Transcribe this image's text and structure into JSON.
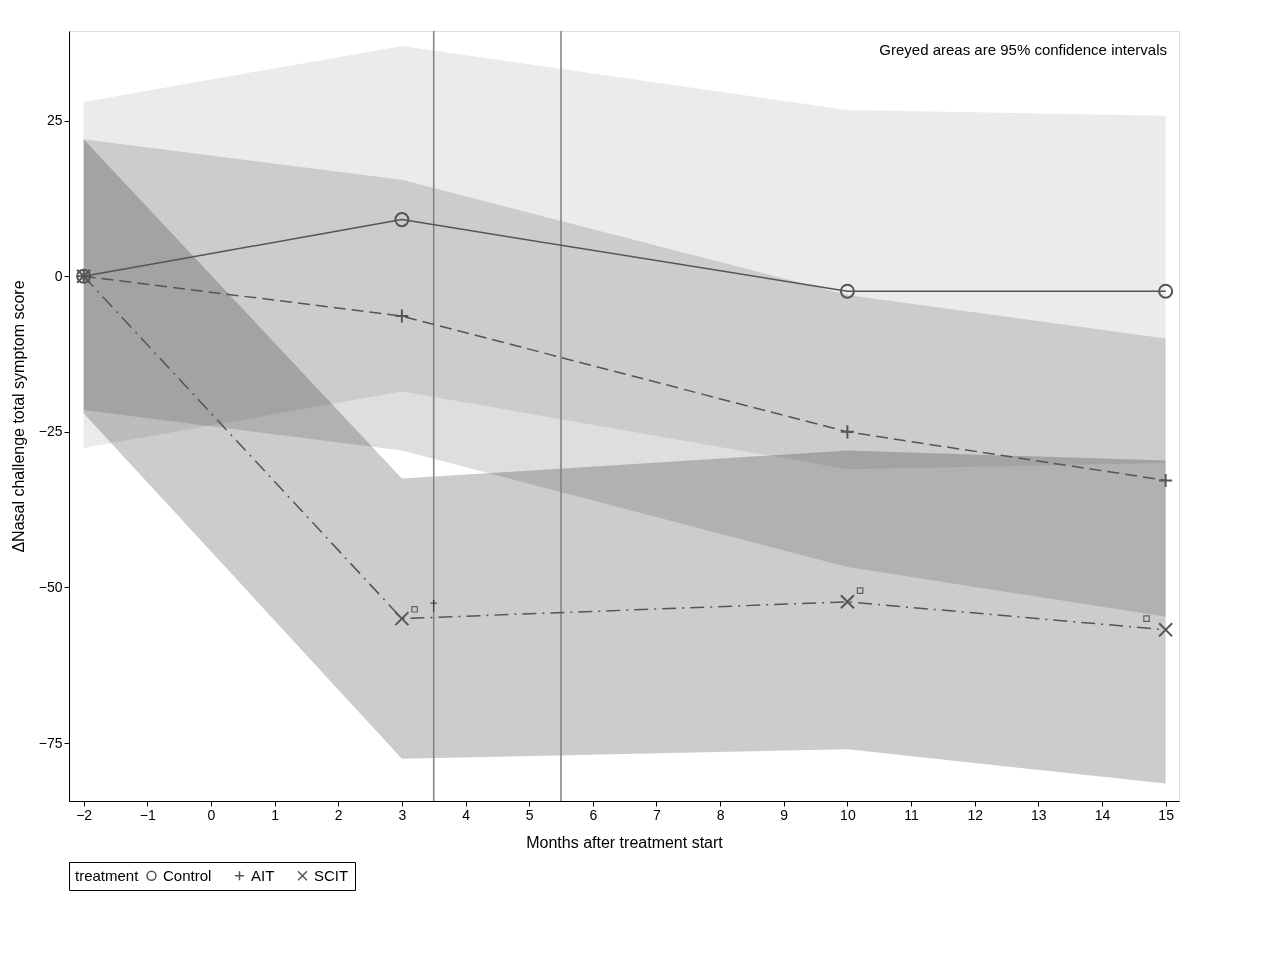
{
  "chart_data": {
    "type": "line",
    "xlabel": "Months after treatment start",
    "ylabel": "ΔNasal challenge total symptom score",
    "legend_title": "treatment",
    "legend": "bottom",
    "grid": false,
    "x": [
      -2,
      3,
      10,
      15
    ],
    "xlim": [
      -2.23,
      15.21
    ],
    "xticks": [
      -2,
      -1,
      0,
      1,
      2,
      3,
      4,
      5,
      6,
      7,
      8,
      9,
      10,
      11,
      12,
      13,
      14,
      15
    ],
    "ylim": [
      -84.3,
      39.4
    ],
    "yticks": [
      -75,
      -50,
      -25,
      0,
      25
    ],
    "series": [
      {
        "name": "Control",
        "color": "#555555",
        "marker": "circle",
        "line_style": "solid",
        "values": [
          0,
          9.1,
          -2.4,
          -2.4
        ],
        "lower": [
          -27.6,
          -18.5,
          -31,
          -30
        ],
        "upper": [
          28,
          37,
          26.7,
          25.8
        ]
      },
      {
        "name": "AIT",
        "color": "#555555",
        "marker": "cross",
        "line_style": "dashed",
        "values": [
          0,
          -6.4,
          -25,
          -32.8
        ],
        "lower": [
          -21.5,
          -28,
          -46.7,
          -54.7
        ],
        "upper": [
          22,
          15.5,
          -3,
          -10
        ]
      },
      {
        "name": "SCIT",
        "color": "#555555",
        "marker": "x",
        "line_style": "dashdot",
        "values": [
          0,
          -55,
          -52.3,
          -56.8
        ],
        "lower": [
          -22,
          -77.5,
          -76,
          -81.5
        ],
        "upper": [
          22,
          -32.5,
          -28,
          -29.6
        ]
      },
      {
        "type": "scatter",
        "color": "#333333",
        "marker": "square",
        "x": [
          3.2,
          10.2,
          14.7
        ],
        "values": [
          -53.5,
          -50.5,
          -55
        ]
      }
    ],
    "ref_lines": [
      {
        "axis": "x",
        "value": 3.5,
        "color": "#808080"
      },
      {
        "axis": "x",
        "value": 5.5,
        "color": "#808080"
      }
    ],
    "annotations": [
      "Greyed areas are 95% confidence intervals",
      {
        "text": "†",
        "x": 3.5,
        "y": -53
      }
    ]
  }
}
